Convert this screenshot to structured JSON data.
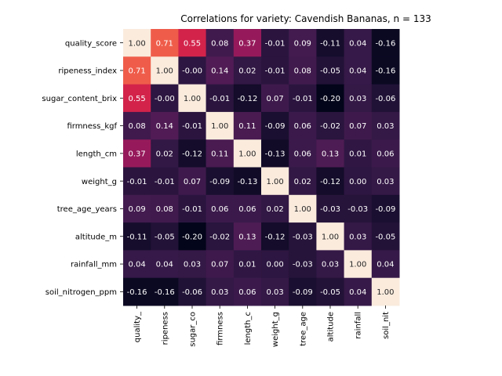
{
  "chart_data": {
    "type": "heatmap",
    "title": "Correlations for variety: Cavendish Bananas, n = 133",
    "row_labels": [
      "quality_score",
      "ripeness_index",
      "sugar_content_brix",
      "firmness_kgf",
      "length_cm",
      "weight_g",
      "tree_age_years",
      "altitude_m",
      "rainfall_mm",
      "soil_nitrogen_ppm"
    ],
    "col_labels": [
      "quality_",
      "ripeness",
      "sugar_co",
      "firmness",
      "length_c",
      "weight_g",
      "tree_age",
      "altitude",
      "rainfall",
      "soil_nit"
    ],
    "values": [
      [
        1.0,
        0.71,
        0.55,
        0.08,
        0.37,
        -0.01,
        0.09,
        -0.11,
        0.04,
        -0.16
      ],
      [
        0.71,
        1.0,
        -0.0,
        0.14,
        0.02,
        -0.01,
        0.08,
        -0.05,
        0.04,
        -0.16
      ],
      [
        0.55,
        -0.0,
        1.0,
        -0.01,
        -0.12,
        0.07,
        -0.01,
        -0.2,
        0.03,
        -0.06
      ],
      [
        0.08,
        0.14,
        -0.01,
        1.0,
        0.11,
        -0.09,
        0.06,
        -0.02,
        0.07,
        0.03
      ],
      [
        0.37,
        0.02,
        -0.12,
        0.11,
        1.0,
        -0.13,
        0.06,
        0.13,
        0.01,
        0.06
      ],
      [
        -0.01,
        -0.01,
        0.07,
        -0.09,
        -0.13,
        1.0,
        0.02,
        -0.12,
        0.0,
        0.03
      ],
      [
        0.09,
        0.08,
        -0.01,
        0.06,
        0.06,
        0.02,
        1.0,
        -0.03,
        -0.03,
        -0.09
      ],
      [
        -0.11,
        -0.05,
        -0.2,
        -0.02,
        0.13,
        -0.12,
        -0.03,
        1.0,
        0.03,
        -0.05
      ],
      [
        0.04,
        0.04,
        0.03,
        0.07,
        0.01,
        0.0,
        -0.03,
        0.03,
        1.0,
        0.04
      ],
      [
        -0.16,
        -0.16,
        -0.06,
        0.03,
        0.06,
        0.03,
        -0.09,
        -0.05,
        0.04,
        1.0
      ]
    ],
    "vmin": -0.2,
    "vmax": 1.0,
    "colormap": "rocket",
    "colorbar": false,
    "grid": false
  }
}
